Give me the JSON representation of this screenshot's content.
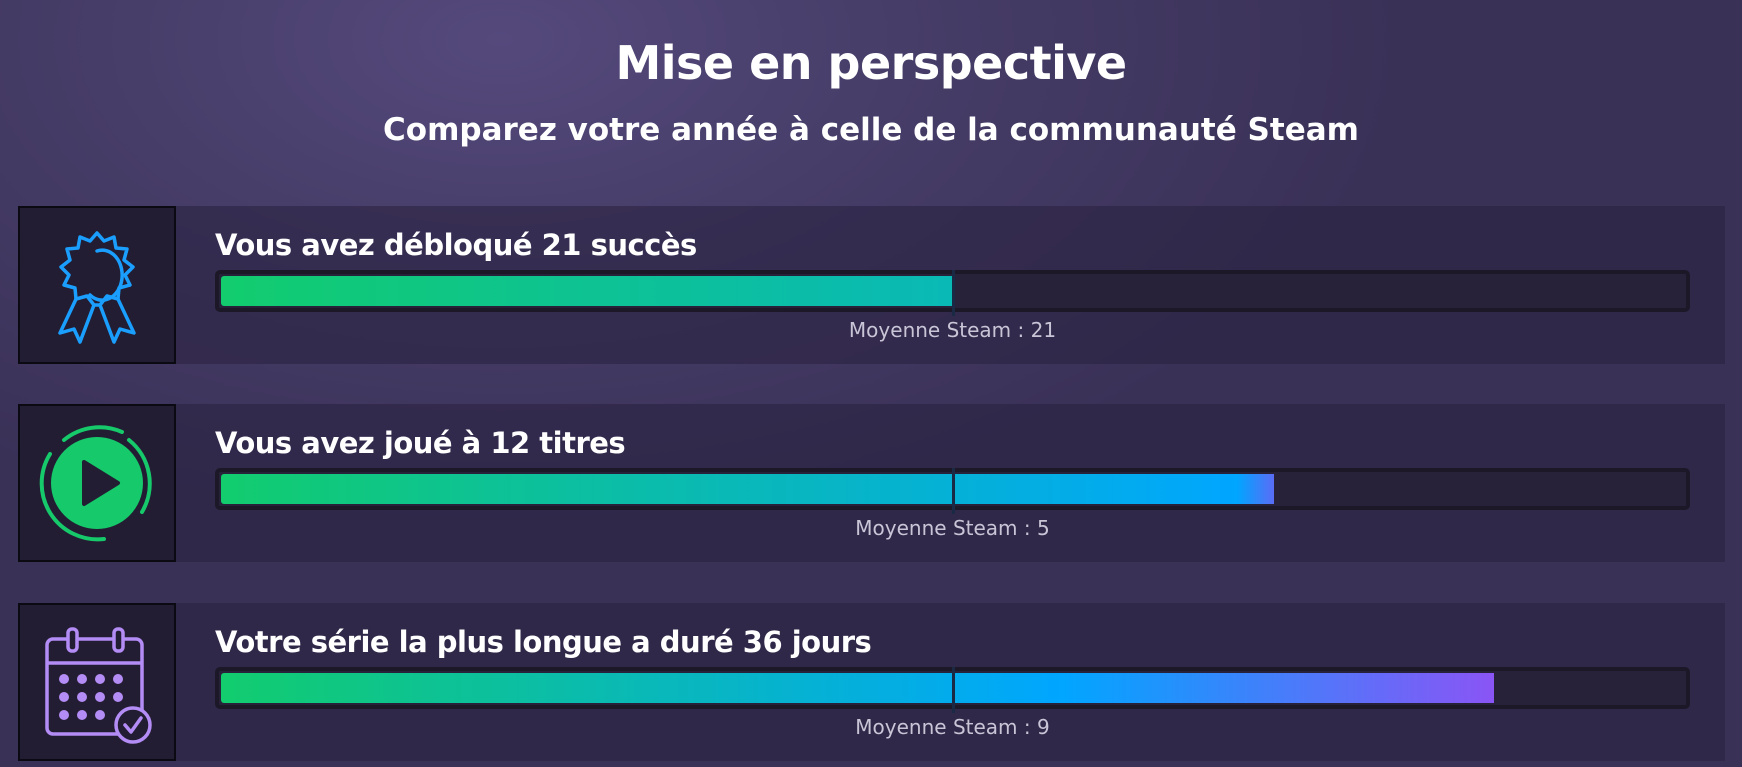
{
  "header": {
    "title": "Mise en perspective",
    "subtitle": "Comparez votre année à celle de la communauté Steam"
  },
  "rows": [
    {
      "icon": "award-ribbon-icon",
      "label": "Vous avez débloqué 21 succès",
      "value": 21,
      "average": "Moyenne Steam : 21",
      "fill_fraction": 0.5,
      "average_fraction": 0.5,
      "icon_color": "#1a9fff",
      "gradient": [
        "#12cc6e",
        "#00a6ff"
      ]
    },
    {
      "icon": "play-circle-icon",
      "label": "Vous avez joué à 12 titres",
      "value": 12,
      "average": "Moyenne Steam : 5",
      "fill_fraction": 0.72,
      "average_fraction": 0.5,
      "icon_color": "#16c96a",
      "gradient": [
        "#12cc6e",
        "#00a6ff",
        "#5a6cf6"
      ]
    },
    {
      "icon": "calendar-check-icon",
      "label": "Votre série la plus longue a duré 36 jours",
      "value": 36,
      "average": "Moyenne Steam : 9",
      "fill_fraction": 0.87,
      "average_fraction": 0.5,
      "icon_color": "#b48cf5",
      "gradient": [
        "#12cc6e",
        "#00a6ff",
        "#8a55f5"
      ]
    }
  ]
}
